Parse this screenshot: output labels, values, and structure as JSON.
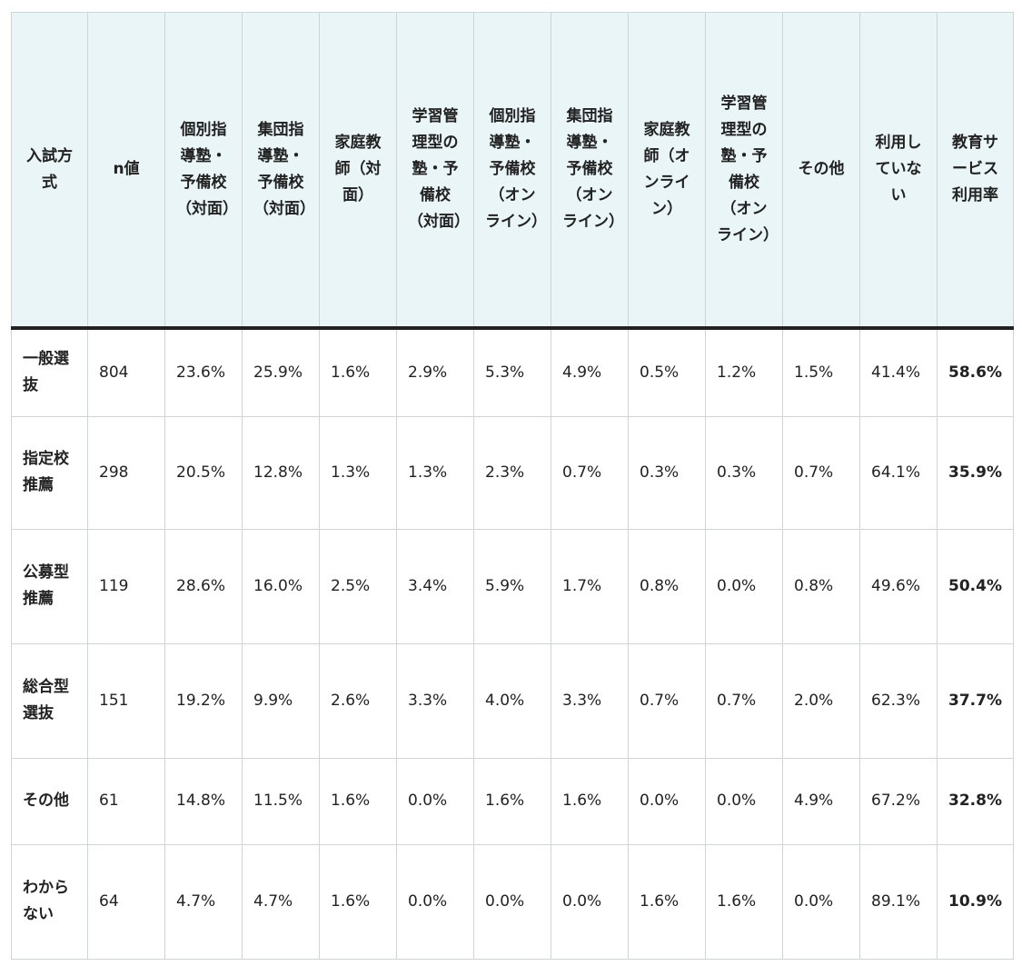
{
  "headers": [
    "入試方式",
    "n値",
    "個別指導塾・予備校（対面）",
    "集団指導塾・予備校（対面）",
    "家庭教師（対面）",
    "学習管理型の塾・予備校（対面）",
    "個別指導塾・予備校（オンライン）",
    "集団指導塾・予備校（オンライン）",
    "家庭教師（オンライン）",
    "学習管理型の塾・予備校（オンライン）",
    "その他",
    "利用していない",
    "教育サービス利用率"
  ],
  "rows": [
    [
      "一般選抜",
      "804",
      "23.6%",
      "25.9%",
      "1.6%",
      "2.9%",
      "5.3%",
      "4.9%",
      "0.5%",
      "1.2%",
      "1.5%",
      "41.4%",
      "58.6%"
    ],
    [
      "指定校推薦",
      "298",
      "20.5%",
      "12.8%",
      "1.3%",
      "1.3%",
      "2.3%",
      "0.7%",
      "0.3%",
      "0.3%",
      "0.7%",
      "64.1%",
      "35.9%"
    ],
    [
      "公募型推薦",
      "119",
      "28.6%",
      "16.0%",
      "2.5%",
      "3.4%",
      "5.9%",
      "1.7%",
      "0.8%",
      "0.0%",
      "0.8%",
      "49.6%",
      "50.4%"
    ],
    [
      "総合型選抜",
      "151",
      "19.2%",
      "9.9%",
      "2.6%",
      "3.3%",
      "4.0%",
      "3.3%",
      "0.7%",
      "0.7%",
      "2.0%",
      "62.3%",
      "37.7%"
    ],
    [
      "その他",
      "61",
      "14.8%",
      "11.5%",
      "1.6%",
      "0.0%",
      "1.6%",
      "1.6%",
      "0.0%",
      "0.0%",
      "4.9%",
      "67.2%",
      "32.8%"
    ],
    [
      "わからない",
      "64",
      "4.7%",
      "4.7%",
      "1.6%",
      "0.0%",
      "0.0%",
      "0.0%",
      "1.6%",
      "1.6%",
      "0.0%",
      "89.1%",
      "10.9%"
    ]
  ],
  "colors": {
    "header_bg": "#e9f5f7",
    "border": "#cfd4d6",
    "header_rule": "#222222"
  }
}
